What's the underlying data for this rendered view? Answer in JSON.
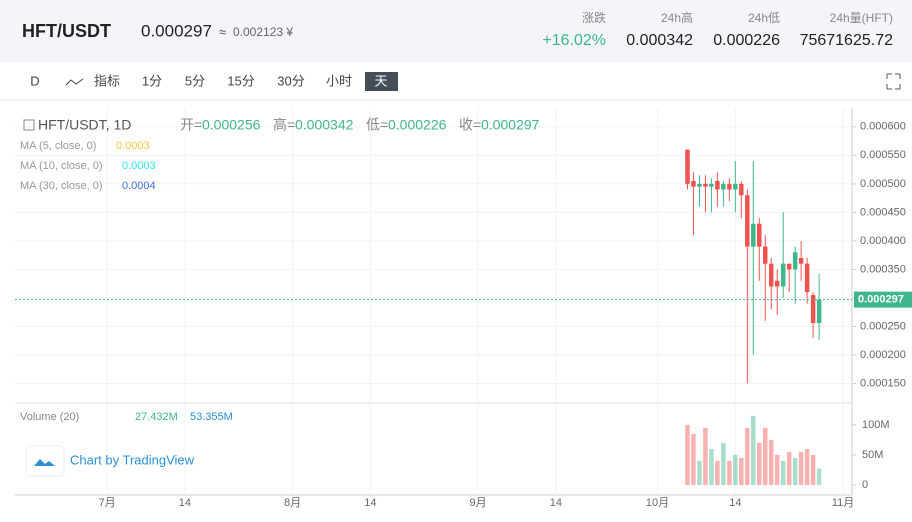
{
  "header": {
    "pair": "HFT/USDT",
    "price": "0.000297",
    "approx": "≈",
    "cny": "0.002123 ¥",
    "stats": [
      {
        "label": "涨跌",
        "value": "+16.02%"
      },
      {
        "label": "24h高",
        "value": "0.000342"
      },
      {
        "label": "24h低",
        "value": "0.000226"
      },
      {
        "label": "24h量(HFT)",
        "value": "75671625.72"
      }
    ]
  },
  "toolbar": {
    "items": [
      "D",
      "指标",
      "1分",
      "5分",
      "15分",
      "30分",
      "小时",
      "天"
    ],
    "active": "天"
  },
  "chart_data": {
    "type": "candlestick",
    "title": "HFT/USDT, 1D",
    "ohlc_legend": [
      {
        "label": "开=",
        "value": "0.000256"
      },
      {
        "label": "高=",
        "value": "0.000342"
      },
      {
        "label": "低=",
        "value": "0.000226"
      },
      {
        "label": "收=",
        "value": "0.000297"
      }
    ],
    "ma_legend": [
      {
        "label": "MA (5, close, 0)",
        "value": "0.0003",
        "color": "#f5c542"
      },
      {
        "label": "MA (10, close, 0)",
        "value": "0.0003",
        "color": "#2ee6e6"
      },
      {
        "label": "MA (30, close, 0)",
        "value": "0.0004",
        "color": "#3f6fd8"
      }
    ],
    "volume_legend": {
      "label": "Volume (20)",
      "value": "27.432M",
      "ma": "53.355M"
    },
    "attribution": "Chart by TradingView",
    "last_price": {
      "value": 0.000297,
      "label": "0.000297"
    },
    "up_color": "#3fb68b",
    "down_color": "#ef5350",
    "x": [
      97,
      98,
      99,
      100,
      101,
      102,
      103,
      104,
      105,
      106,
      107,
      108,
      109,
      110,
      111,
      112,
      113,
      114,
      115,
      116,
      117,
      118,
      119
    ],
    "open": [
      0.00056,
      0.000505,
      0.000495,
      0.0005,
      0.000495,
      0.000505,
      0.00049,
      0.0005,
      0.00049,
      0.0005,
      0.00048,
      0.00039,
      0.00043,
      0.00039,
      0.00036,
      0.00033,
      0.00032,
      0.00036,
      0.00035,
      0.00037,
      0.00036,
      0.000305,
      0.000256
    ],
    "high": [
      0.00056,
      0.00052,
      0.000515,
      0.000515,
      0.00051,
      0.00052,
      0.000505,
      0.00051,
      0.00054,
      0.000505,
      0.00049,
      0.00054,
      0.00044,
      0.00041,
      0.00037,
      0.00035,
      0.00045,
      0.00036,
      0.00039,
      0.0004,
      0.00037,
      0.00031,
      0.000342
    ],
    "low": [
      0.00049,
      0.00041,
      0.00046,
      0.00045,
      0.00045,
      0.00046,
      0.00046,
      0.00047,
      0.00045,
      0.00044,
      0.00015,
      0.0002,
      0.00033,
      0.00026,
      0.00028,
      0.00027,
      0.0003,
      0.00031,
      0.00029,
      0.00033,
      0.00029,
      0.00023,
      0.000226
    ],
    "close": [
      0.0005,
      0.000495,
      0.0005,
      0.000495,
      0.0005,
      0.00049,
      0.0005,
      0.00049,
      0.0005,
      0.00048,
      0.00039,
      0.00043,
      0.00039,
      0.00036,
      0.00032,
      0.00032,
      0.00036,
      0.00035,
      0.00038,
      0.00036,
      0.00031,
      0.000256,
      0.000297
    ],
    "volume": [
      100000000,
      85000000,
      40000000,
      95000000,
      60000000,
      40000000,
      70000000,
      40000000,
      50000000,
      45000000,
      95000000,
      115000000,
      70000000,
      95000000,
      75000000,
      50000000,
      40000000,
      55000000,
      45000000,
      55000000,
      60000000,
      50000000,
      27432000
    ],
    "xlim": [
      -15.4,
      124.5
    ],
    "xticks": [
      {
        "value": 0,
        "label": "7月"
      },
      {
        "value": 13,
        "label": "14"
      },
      {
        "value": 31,
        "label": "8月"
      },
      {
        "value": 44,
        "label": "14"
      },
      {
        "value": 62,
        "label": "9月"
      },
      {
        "value": 75,
        "label": "14"
      },
      {
        "value": 92,
        "label": "10月"
      },
      {
        "value": 105,
        "label": "14"
      },
      {
        "value": 123,
        "label": "11月"
      }
    ],
    "ylim": [
      0.000121,
      0.000633
    ],
    "yticks": [
      {
        "value": 0.00015,
        "label": "0.000150"
      },
      {
        "value": 0.0002,
        "label": "0.000200"
      },
      {
        "value": 0.00025,
        "label": "0.000250"
      },
      {
        "value": 0.0003,
        "label": "0.000300"
      },
      {
        "value": 0.00035,
        "label": "0.000350"
      },
      {
        "value": 0.0004,
        "label": "0.000400"
      },
      {
        "value": 0.00045,
        "label": "0.000450"
      },
      {
        "value": 0.0005,
        "label": "0.000500"
      },
      {
        "value": 0.00055,
        "label": "0.000550"
      },
      {
        "value": 0.0006,
        "label": "0.000600"
      }
    ],
    "vlim": [
      0,
      133000000
    ],
    "vticks": [
      0,
      {
        "value": 50000000,
        "label": "50M"
      },
      {
        "value": 100000000,
        "label": "100M"
      }
    ],
    "grid": true
  }
}
